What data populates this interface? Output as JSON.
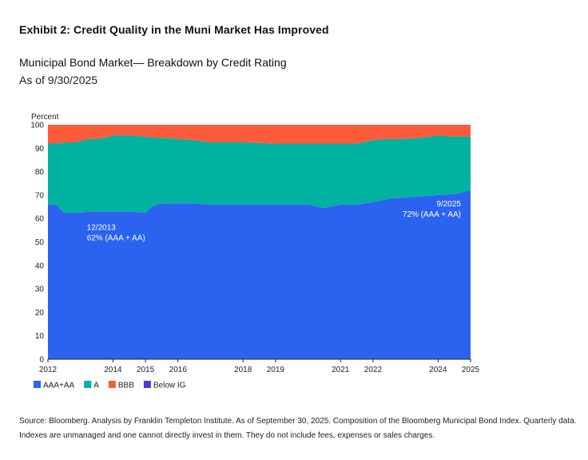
{
  "header": {
    "exhibit_title": "Exhibit 2: Credit Quality in the Muni Market Has Improved",
    "chart_title": "Municipal Bond Market— Breakdown by Credit Rating",
    "chart_subtitle": "As of 9/30/2025"
  },
  "chart_data": {
    "type": "area",
    "stacked": true,
    "ylabel": "Percent",
    "ylim": [
      0,
      100
    ],
    "yticks": [
      0,
      10,
      20,
      30,
      40,
      50,
      60,
      70,
      80,
      90,
      100
    ],
    "xlim": [
      2012,
      2025
    ],
    "xticks": [
      2012,
      2014,
      2015,
      2016,
      2018,
      2019,
      2021,
      2022,
      2024,
      2025
    ],
    "grid": false,
    "legend_position": "bottom-left",
    "x": [
      2012.0,
      2012.25,
      2012.5,
      2012.75,
      2013.0,
      2013.25,
      2013.5,
      2013.75,
      2014.0,
      2014.5,
      2015.0,
      2015.25,
      2015.5,
      2016.0,
      2016.5,
      2017.0,
      2018.0,
      2019.0,
      2020.0,
      2020.5,
      2021.0,
      2021.5,
      2022.0,
      2022.5,
      2023.0,
      2023.5,
      2024.0,
      2024.5,
      2025.0
    ],
    "series": [
      {
        "name": "AAA+AA",
        "color": "#2b63f0",
        "values": [
          66,
          66,
          62.5,
          62.5,
          62.5,
          63,
          63,
          63,
          63,
          63,
          62.5,
          65.5,
          66.5,
          66.5,
          66.5,
          66,
          66,
          66,
          66,
          64.5,
          66,
          66,
          67,
          68.5,
          69,
          69.5,
          70,
          70.5,
          72
        ]
      },
      {
        "name": "A",
        "color": "#00b3a0",
        "values": [
          26,
          26,
          30,
          30,
          30.5,
          31,
          31,
          31.5,
          32.5,
          32.5,
          32.5,
          29,
          28,
          27.5,
          27,
          26.5,
          26.5,
          26,
          26,
          27.5,
          26,
          26,
          26.5,
          25.5,
          25,
          25,
          25.5,
          24.5,
          23
        ]
      },
      {
        "name": "BBB",
        "color": "#ff5a3a",
        "values": [
          8,
          8,
          7.5,
          7.5,
          7,
          6,
          6,
          5.5,
          4.5,
          4.5,
          5,
          5.5,
          5.5,
          6,
          6.5,
          7.5,
          7.5,
          8,
          8,
          8,
          8,
          8,
          6.5,
          6,
          6,
          5.5,
          4.5,
          5,
          5
        ]
      },
      {
        "name": "Below IG",
        "color": "#4a3dd6",
        "values": [
          0,
          0,
          0,
          0,
          0,
          0,
          0,
          0,
          0,
          0,
          0,
          0,
          0,
          0,
          0,
          0,
          0,
          0,
          0,
          0,
          0,
          0,
          0,
          0,
          0,
          0,
          0,
          0,
          0
        ]
      }
    ],
    "annotations": [
      {
        "x": 2013.0,
        "y": 62,
        "line1": "12/2013",
        "line2": "62% (AAA + AA)",
        "align": "start"
      },
      {
        "x": 2025.0,
        "y": 72,
        "line1": "9/2025",
        "line2": "72% (AAA + AA)",
        "align": "end"
      }
    ]
  },
  "source_note": "Source: Bloomberg. Analysis by Franklin Templeton Institute. As of September 30, 2025. Composition of the Bloomberg Municipal Bond Index. Quarterly data. Indexes are unmanaged and one cannot directly invest in them. They do not include fees, expenses or sales charges."
}
